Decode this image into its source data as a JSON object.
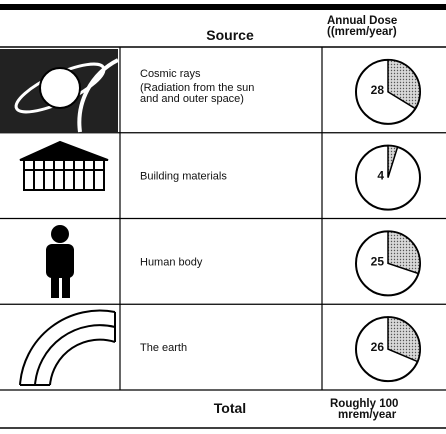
{
  "header": {
    "source": "Source",
    "dose": "Annual Dose (mrem/year)"
  },
  "rows": [
    {
      "source": "Cosmic rays",
      "note": "(Radiation from the sun and outer space)",
      "dose": 28
    },
    {
      "source": "Building materials",
      "dose": 4
    },
    {
      "source": "Human body",
      "dose": 25
    },
    {
      "source": "The earth",
      "dose": 26
    }
  ],
  "total": {
    "label": "Total",
    "dose": "Roughly 100 mrem/year"
  }
}
